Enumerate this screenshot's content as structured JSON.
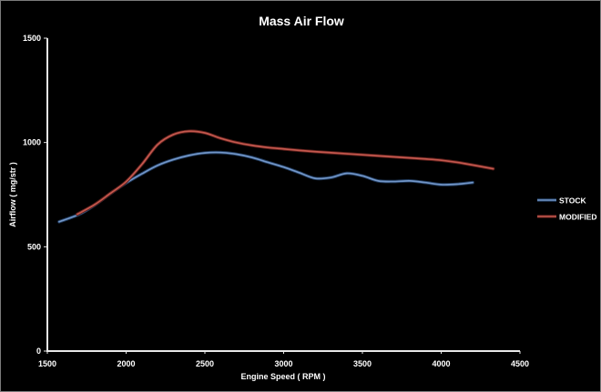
{
  "window": {
    "background": "#000000",
    "border_color": "#7b7b7b"
  },
  "chart_data": {
    "type": "line",
    "title": "Mass Air Flow",
    "xlabel": "Engine Speed ( RPM )",
    "ylabel": "Airflow ( mg/str )",
    "xlim": [
      1500,
      4500
    ],
    "ylim": [
      0,
      1500
    ],
    "xticks": [
      1500,
      2000,
      2500,
      3000,
      3500,
      4000,
      4500
    ],
    "yticks": [
      0,
      500,
      1000,
      1500
    ],
    "grid": false,
    "legend_position": "right",
    "axis_color": "#e8e8e8",
    "text_color": "#ffffff",
    "series": [
      {
        "name": "STOCK",
        "color": "#7296c8",
        "edge_color": "#203a5c",
        "points": [
          [
            1575,
            620
          ],
          [
            1700,
            655
          ],
          [
            1800,
            700
          ],
          [
            1900,
            755
          ],
          [
            2000,
            806
          ],
          [
            2100,
            850
          ],
          [
            2200,
            890
          ],
          [
            2300,
            918
          ],
          [
            2400,
            938
          ],
          [
            2500,
            950
          ],
          [
            2600,
            952
          ],
          [
            2700,
            944
          ],
          [
            2800,
            928
          ],
          [
            2900,
            905
          ],
          [
            3000,
            882
          ],
          [
            3100,
            855
          ],
          [
            3200,
            828
          ],
          [
            3300,
            832
          ],
          [
            3400,
            852
          ],
          [
            3500,
            840
          ],
          [
            3600,
            816
          ],
          [
            3700,
            813
          ],
          [
            3800,
            816
          ],
          [
            3900,
            808
          ],
          [
            4000,
            798
          ],
          [
            4100,
            800
          ],
          [
            4200,
            808
          ]
        ]
      },
      {
        "name": "MODIFIED",
        "color": "#c4584e",
        "edge_color": "#5a1e1a",
        "points": [
          [
            1690,
            656
          ],
          [
            1800,
            702
          ],
          [
            1900,
            756
          ],
          [
            2000,
            812
          ],
          [
            2100,
            895
          ],
          [
            2200,
            990
          ],
          [
            2300,
            1038
          ],
          [
            2400,
            1054
          ],
          [
            2500,
            1046
          ],
          [
            2600,
            1020
          ],
          [
            2700,
            1000
          ],
          [
            2800,
            986
          ],
          [
            2900,
            976
          ],
          [
            3000,
            969
          ],
          [
            3100,
            962
          ],
          [
            3200,
            956
          ],
          [
            3300,
            951
          ],
          [
            3400,
            946
          ],
          [
            3500,
            941
          ],
          [
            3600,
            936
          ],
          [
            3700,
            931
          ],
          [
            3800,
            926
          ],
          [
            3900,
            921
          ],
          [
            4000,
            915
          ],
          [
            4100,
            905
          ],
          [
            4200,
            892
          ],
          [
            4330,
            874
          ]
        ]
      }
    ]
  }
}
